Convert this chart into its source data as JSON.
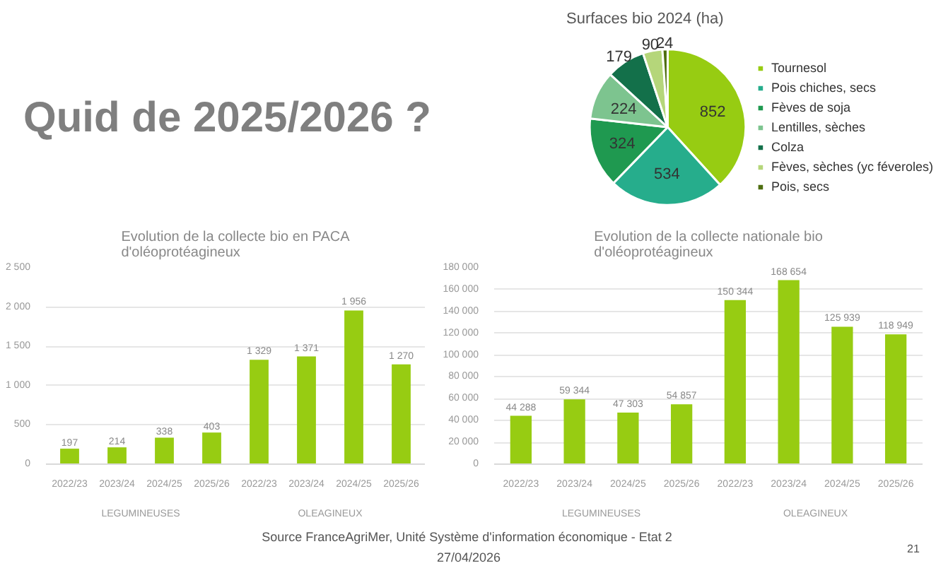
{
  "chart_data": [
    {
      "type": "other",
      "title": "Quid de 2025/2026 ?",
      "annotations": [
        "Source FranceAgriMer, Unité Système d'information économique  - Etat 2",
        "27/04/2026",
        "21"
      ]
    },
    {
      "type": "pie",
      "title": "Surfaces bio 2024 (ha)",
      "categories": [
        "Tournesol",
        "Pois chiches, secs",
        "Fèves de soja",
        "Lentilles, sèches",
        "Colza",
        "Fèves, sèches (yc féveroles)",
        "Pois, secs"
      ],
      "values": [
        852,
        534,
        324,
        224,
        179,
        90,
        24
      ],
      "colors": [
        "#97cc12",
        "#26ad8c",
        "#1f9950",
        "#7dc48f",
        "#13704a",
        "#b5d67a",
        "#4e6e10"
      ],
      "data_labels": true,
      "legend": "right"
    },
    {
      "type": "bar",
      "title": "Evolution de la collecte bio en PACA d'oléoprotéagineux",
      "categories": [
        "2022/23",
        "2023/24",
        "2024/25",
        "2025/26",
        "2022/23",
        "2023/24",
        "2024/25",
        "2025/26"
      ],
      "values": [
        197,
        214,
        338,
        403,
        1329,
        1371,
        1956,
        1270
      ],
      "color": "#97cc12",
      "value_labels": [
        "197",
        "214",
        "338",
        "403",
        "1 329",
        "1 371",
        "1 956",
        "1 270"
      ],
      "ylim": [
        0,
        2500
      ],
      "yticks": [
        0,
        500,
        {
          "value": 1000,
          "label": "1 000"
        },
        {
          "value": 1500,
          "label": "1 500"
        },
        {
          "value": 2000,
          "label": "2 000"
        },
        {
          "value": 2500,
          "label": "2 500"
        }
      ],
      "grid": "y",
      "annotations": [
        "LEGUMINEUSES",
        "OLEAGINEUX"
      ]
    },
    {
      "type": "bar",
      "title": "Evolution de la collecte nationale bio d'oléoprotéagineux",
      "categories": [
        "2022/23",
        "2023/24",
        "2024/25",
        "2025/26",
        "2022/23",
        "2023/24",
        "2024/25",
        "2025/26"
      ],
      "values": [
        44288,
        59344,
        47303,
        54857,
        150344,
        168654,
        125939,
        118949
      ],
      "color": "#97cc12",
      "value_labels": [
        "44 288",
        "59 344",
        "47 303",
        "54 857",
        "150 344",
        "168 654",
        "125 939",
        "118 949"
      ],
      "ylim": [
        0,
        180000
      ],
      "yticks": [
        0,
        {
          "value": 20000,
          "label": "20 000"
        },
        {
          "value": 40000,
          "label": "40 000"
        },
        {
          "value": 60000,
          "label": "60 000"
        },
        {
          "value": 80000,
          "label": "80 000"
        },
        {
          "value": 100000,
          "label": "100 000"
        },
        {
          "value": 120000,
          "label": "120 000"
        },
        {
          "value": 140000,
          "label": "140 000"
        },
        {
          "value": 160000,
          "label": "160 000"
        },
        {
          "value": 180000,
          "label": "180 000"
        }
      ],
      "grid": "y",
      "annotations": [
        "LEGUMINEUSES",
        "OLEAGINEUX"
      ]
    }
  ]
}
